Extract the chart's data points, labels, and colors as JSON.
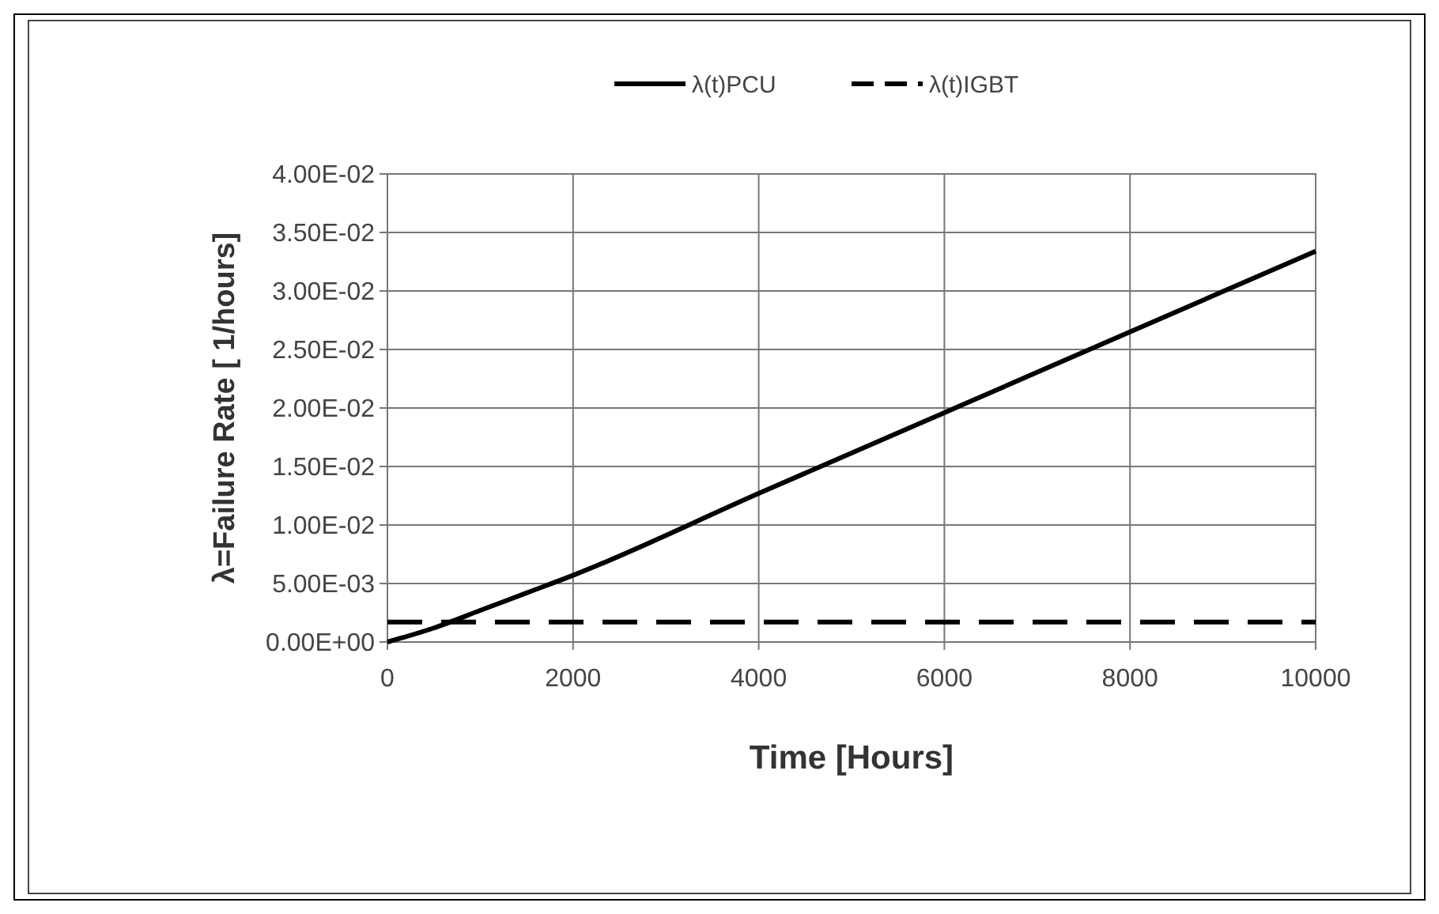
{
  "chart_data": {
    "type": "line",
    "xlabel": "Time [Hours]",
    "ylabel": "λ=Failure Rate [ 1/hours]",
    "xlim": [
      0,
      10000
    ],
    "xticks": [
      0,
      2000,
      4000,
      6000,
      8000,
      10000
    ],
    "ylim": [
      0,
      0.04
    ],
    "yticks": [
      {
        "value": 0,
        "label": "0.00E+00"
      },
      {
        "value": 0.005,
        "label": "5.00E-03"
      },
      {
        "value": 0.01,
        "label": "1.00E-02"
      },
      {
        "value": 0.015,
        "label": "1.50E-02"
      },
      {
        "value": 0.02,
        "label": "2.00E-02"
      },
      {
        "value": 0.025,
        "label": "2.50E-02"
      },
      {
        "value": 0.03,
        "label": "3.00E-02"
      },
      {
        "value": 0.035,
        "label": "3.50E-02"
      },
      {
        "value": 0.04,
        "label": "4.00E-02"
      }
    ],
    "grid": true,
    "legend": "top",
    "marker": "none",
    "series": [
      {
        "name": "λ(t)PCU",
        "color": "#000000",
        "line_style": "solid",
        "x": [
          0,
          500,
          1000,
          1500,
          2000,
          4000,
          6000,
          8000,
          10000
        ],
        "values": [
          0,
          0.0012,
          0.0027,
          0.0042,
          0.0057,
          0.0127,
          0.0196,
          0.0265,
          0.0334
        ]
      },
      {
        "name": "λ(t)IGBT",
        "color": "#000000",
        "line_style": "dashed",
        "x": [
          0,
          10000
        ],
        "values": [
          0.0017,
          0.0017
        ]
      }
    ]
  }
}
